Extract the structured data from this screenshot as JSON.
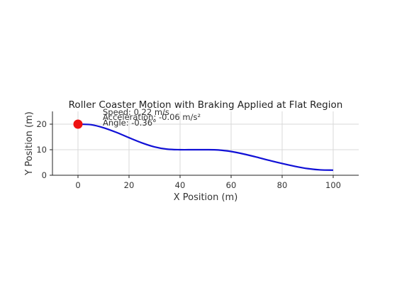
{
  "chart_data": {
    "type": "line",
    "title": "Roller Coaster Motion with Braking Applied at Flat Region",
    "xlabel": "X Position (m)",
    "ylabel": "Y Position (m)",
    "xlim": [
      -10,
      110
    ],
    "ylim": [
      0,
      25
    ],
    "xticks": [
      0,
      20,
      40,
      60,
      80,
      100
    ],
    "yticks": [
      0,
      10,
      20
    ],
    "grid": true,
    "series": [
      {
        "color": "#1010d6",
        "x": [
          0,
          5,
          10,
          15,
          20,
          25,
          30,
          35,
          40,
          45,
          50,
          55,
          60,
          65,
          70,
          75,
          80,
          85,
          90,
          95,
          100
        ],
        "y": [
          20,
          19.8,
          18.6,
          16.8,
          14.7,
          12.7,
          11.1,
          10.2,
          10.0,
          10.0,
          10.0,
          9.9,
          9.3,
          8.3,
          7.1,
          5.8,
          4.6,
          3.5,
          2.6,
          2.1,
          2.0
        ]
      }
    ],
    "marker": {
      "x": 0,
      "y": 20,
      "color": "#ee1111"
    },
    "annotations": [
      {
        "text": "Speed: 0.22 m/s"
      },
      {
        "text": "Acceleration: -0.06  m/s²"
      },
      {
        "text": "Angle: -0.36°"
      }
    ]
  }
}
